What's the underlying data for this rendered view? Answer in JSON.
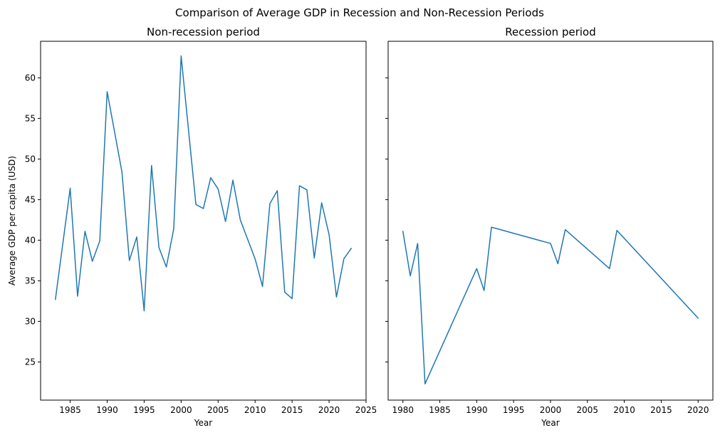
{
  "figure": {
    "suptitle": "Comparison of Average GDP in Recession and Non-Recession Periods"
  },
  "colors": {
    "line": "#1f77b4",
    "axes": "#000000",
    "background": "#ffffff"
  },
  "chart_data": [
    {
      "type": "line",
      "title": "Non-recession period",
      "xlabel": "Year",
      "ylabel": "Average GDP per capita (USD)",
      "xlim": [
        1981.0,
        2025.0
      ],
      "ylim": [
        20.3,
        64.5
      ],
      "xticks": [
        1985,
        1990,
        1995,
        2000,
        2005,
        2010,
        2015,
        2020,
        2025
      ],
      "yticks": [
        25,
        30,
        35,
        40,
        45,
        50,
        55,
        60
      ],
      "grid": false,
      "series": [
        {
          "x": [
            1983,
            1985,
            1986,
            1987,
            1988,
            1989,
            1990,
            1992,
            1993,
            1994,
            1995,
            1996,
            1997,
            1998,
            1999,
            2000,
            2002,
            2003,
            2004,
            2005,
            2006,
            2007,
            2008,
            2010,
            2011,
            2012,
            2013,
            2014,
            2015,
            2016,
            2017,
            2018,
            2019,
            2020,
            2021,
            2022,
            2023
          ],
          "y": [
            32.7,
            46.4,
            33.1,
            41.1,
            37.4,
            39.9,
            58.3,
            48.4,
            37.5,
            40.4,
            31.3,
            49.2,
            39.1,
            36.7,
            41.4,
            62.7,
            44.4,
            43.9,
            47.7,
            46.3,
            42.3,
            47.4,
            42.5,
            37.7,
            34.3,
            44.5,
            46.1,
            33.6,
            32.8,
            46.7,
            46.2,
            37.8,
            44.6,
            40.7,
            33.0,
            37.7,
            39.0
          ]
        }
      ]
    },
    {
      "type": "line",
      "title": "Recession period",
      "xlabel": "Year",
      "ylabel": "",
      "xlim": [
        1978.0,
        2022.0
      ],
      "ylim": [
        20.3,
        64.5
      ],
      "xticks": [
        1980,
        1985,
        1990,
        1995,
        2000,
        2005,
        2010,
        2015,
        2020
      ],
      "yticks": [
        25,
        30,
        35,
        40,
        45,
        50,
        55,
        60
      ],
      "shared_y": true,
      "grid": false,
      "series": [
        {
          "x": [
            1980,
            1981,
            1982,
            1983,
            1990,
            1991,
            1992,
            2000,
            2001,
            2002,
            2008,
            2009,
            2020
          ],
          "y": [
            41.1,
            35.6,
            39.6,
            22.3,
            36.5,
            33.8,
            41.6,
            39.6,
            37.1,
            41.3,
            36.5,
            41.2,
            30.4
          ]
        }
      ]
    }
  ]
}
